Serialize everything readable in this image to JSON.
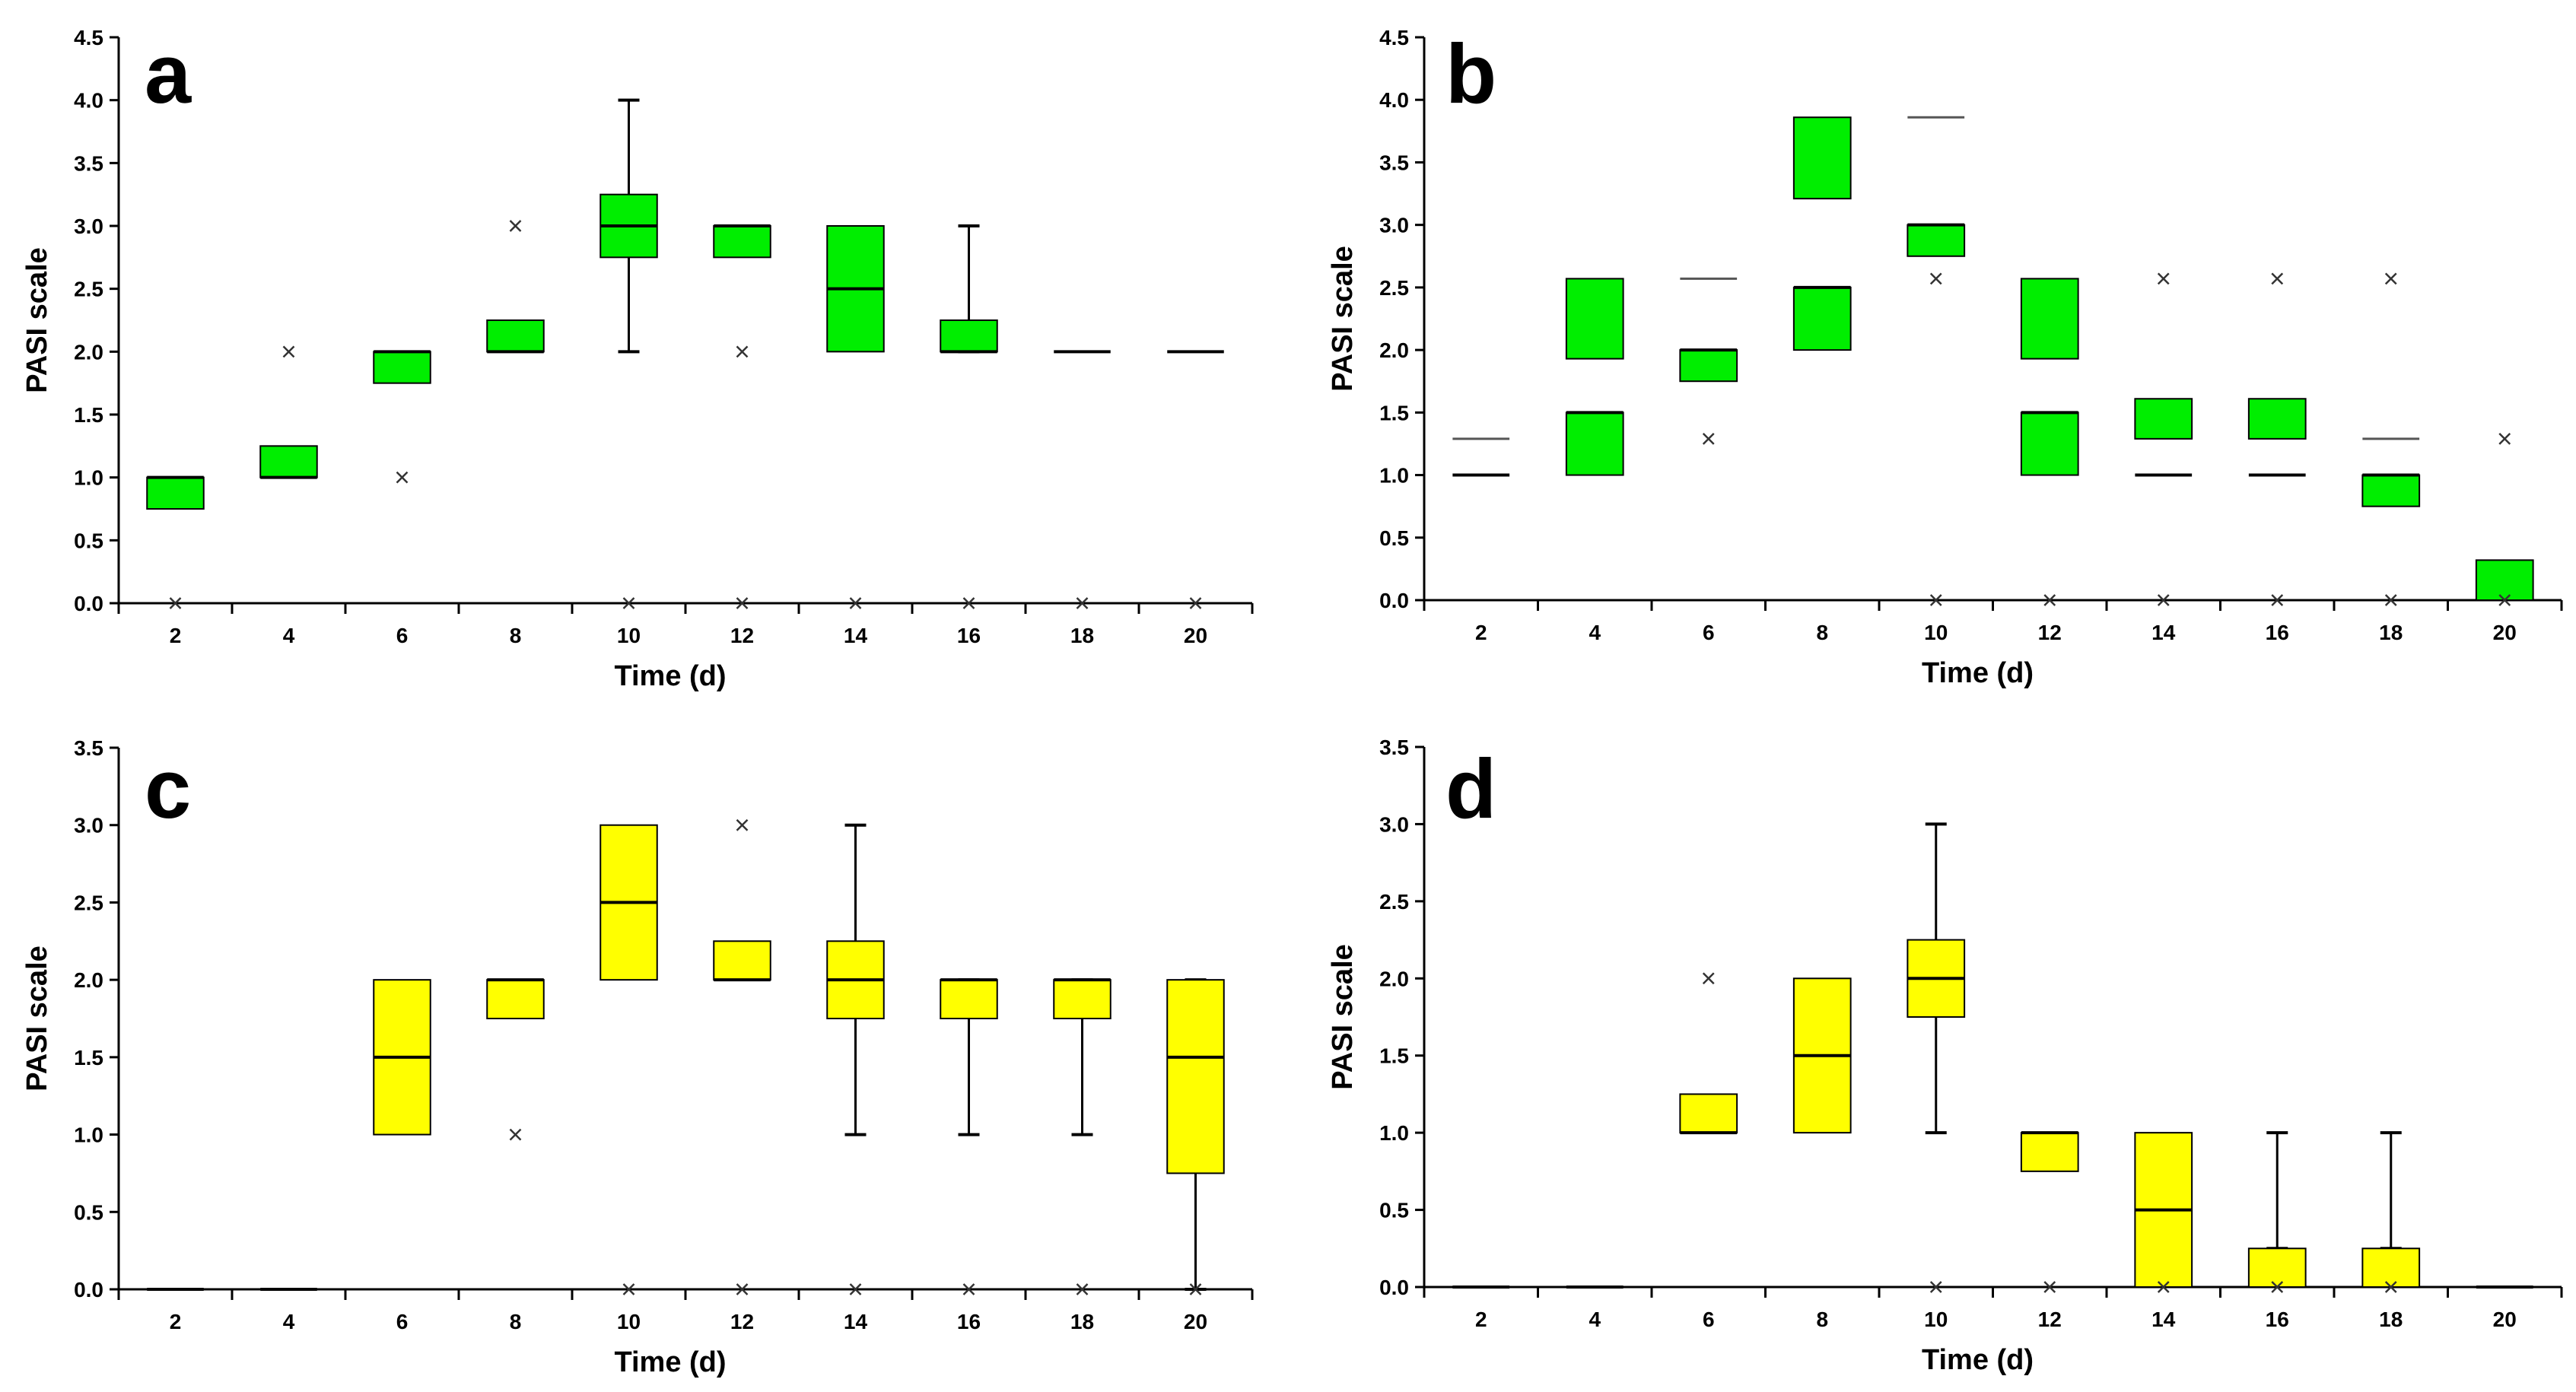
{
  "chart_data": [
    {
      "type": "box",
      "panel": "a",
      "color": "#00ee00",
      "xlabel": "Time (d)",
      "ylabel": "PASI scale",
      "ylim": [
        0,
        4.5
      ],
      "yticks": [
        "0.0",
        "0.5",
        "1.0",
        "1.5",
        "2.0",
        "2.5",
        "3.0",
        "3.5",
        "4.0",
        "4.5"
      ],
      "categories": [
        "2",
        "4",
        "6",
        "8",
        "10",
        "12",
        "14",
        "16",
        "18",
        "20"
      ],
      "series": [
        {
          "x": "2",
          "boxes": [
            {
              "q1": 0.75,
              "q3": 1.0
            }
          ],
          "medians": [
            1.0
          ],
          "outliers": [
            0.0
          ]
        },
        {
          "x": "4",
          "boxes": [
            {
              "q1": 1.0,
              "q3": 1.25
            }
          ],
          "medians": [
            1.0
          ],
          "outliers": [
            2.0
          ]
        },
        {
          "x": "6",
          "boxes": [
            {
              "q1": 1.75,
              "q3": 2.0
            }
          ],
          "medians": [
            2.0
          ],
          "outliers": [
            1.0
          ]
        },
        {
          "x": "8",
          "boxes": [
            {
              "q1": 2.0,
              "q3": 2.25
            }
          ],
          "medians": [
            2.0
          ],
          "outliers": [
            3.0
          ]
        },
        {
          "x": "10",
          "boxes": [
            {
              "q1": 2.75,
              "q3": 3.25
            }
          ],
          "medians": [
            3.0
          ],
          "whisker": [
            2.0,
            4.0
          ],
          "outliers": [
            0.0
          ]
        },
        {
          "x": "12",
          "boxes": [
            {
              "q1": 2.75,
              "q3": 3.0
            }
          ],
          "medians": [
            3.0
          ],
          "outliers": [
            2.0,
            0.0
          ]
        },
        {
          "x": "14",
          "boxes": [
            {
              "q1": 2.0,
              "q3": 3.0
            }
          ],
          "medians": [
            2.5
          ],
          "outliers": [
            0.0
          ]
        },
        {
          "x": "16",
          "boxes": [
            {
              "q1": 2.0,
              "q3": 2.25
            }
          ],
          "medians": [
            2.0
          ],
          "whisker": [
            2.0,
            3.0
          ],
          "outliers": [
            0.0
          ]
        },
        {
          "x": "18",
          "boxes": [],
          "medians": [
            2.0
          ],
          "outliers": [
            0.0
          ]
        },
        {
          "x": "20",
          "boxes": [],
          "medians": [
            2.0
          ],
          "outliers": [
            0.0
          ]
        }
      ]
    },
    {
      "type": "box",
      "panel": "b",
      "color": "#00ee00",
      "xlabel": "Time (d)",
      "ylabel": "PASI scale",
      "ylim": [
        0,
        4.5
      ],
      "yticks": [
        "0.0",
        "0.5",
        "1.0",
        "1.5",
        "2.0",
        "2.5",
        "3.0",
        "3.5",
        "4.0",
        "4.5"
      ],
      "categories": [
        "2",
        "4",
        "6",
        "8",
        "10",
        "12",
        "14",
        "16",
        "18",
        "20"
      ],
      "series": [
        {
          "x": "2",
          "boxes": [],
          "medians": [
            1.0
          ],
          "lines": [
            1.29
          ],
          "outliers": []
        },
        {
          "x": "4",
          "boxes": [
            {
              "q1": 1.0,
              "q3": 1.5
            },
            {
              "q1": 1.93,
              "q3": 2.57
            }
          ],
          "medians": [
            1.5
          ],
          "outliers": []
        },
        {
          "x": "6",
          "boxes": [
            {
              "q1": 1.75,
              "q3": 2.0
            }
          ],
          "medians": [
            2.0
          ],
          "lines": [
            2.57
          ],
          "outliers": [
            1.29
          ]
        },
        {
          "x": "8",
          "boxes": [
            {
              "q1": 2.0,
              "q3": 2.5
            },
            {
              "q1": 3.21,
              "q3": 3.86
            }
          ],
          "medians": [
            2.5
          ],
          "outliers": []
        },
        {
          "x": "10",
          "boxes": [
            {
              "q1": 2.75,
              "q3": 3.0
            }
          ],
          "medians": [
            3.0
          ],
          "lines": [
            3.86
          ],
          "outliers": [
            2.57,
            0.0
          ]
        },
        {
          "x": "12",
          "boxes": [
            {
              "q1": 1.0,
              "q3": 1.5
            },
            {
              "q1": 1.93,
              "q3": 2.57
            }
          ],
          "medians": [
            1.5
          ],
          "outliers": [
            0.0
          ]
        },
        {
          "x": "14",
          "boxes": [
            {
              "q1": 1.29,
              "q3": 1.61
            }
          ],
          "medians": [
            1.0
          ],
          "outliers": [
            2.57,
            0.0
          ]
        },
        {
          "x": "16",
          "boxes": [
            {
              "q1": 1.29,
              "q3": 1.61
            }
          ],
          "medians": [
            1.0
          ],
          "outliers": [
            2.57,
            0.0
          ]
        },
        {
          "x": "18",
          "boxes": [
            {
              "q1": 0.75,
              "q3": 1.0
            }
          ],
          "medians": [
            1.0
          ],
          "lines": [
            1.29
          ],
          "outliers": [
            2.57,
            0.0
          ]
        },
        {
          "x": "20",
          "boxes": [
            {
              "q1": 0.0,
              "q3": 0.32
            }
          ],
          "medians": [],
          "outliers": [
            1.29,
            0.0
          ]
        }
      ]
    },
    {
      "type": "box",
      "panel": "c",
      "color": "#ffff00",
      "xlabel": "Time (d)",
      "ylabel": "PASI scale",
      "ylim": [
        0,
        3.5
      ],
      "yticks": [
        "0.0",
        "0.5",
        "1.0",
        "1.5",
        "2.0",
        "2.5",
        "3.0",
        "3.5"
      ],
      "categories": [
        "2",
        "4",
        "6",
        "8",
        "10",
        "12",
        "14",
        "16",
        "18",
        "20"
      ],
      "series": [
        {
          "x": "2",
          "boxes": [],
          "medians": [
            0.0
          ],
          "outliers": []
        },
        {
          "x": "4",
          "boxes": [],
          "medians": [
            0.0
          ],
          "outliers": []
        },
        {
          "x": "6",
          "boxes": [
            {
              "q1": 1.0,
              "q3": 2.0
            }
          ],
          "medians": [
            1.5
          ],
          "outliers": []
        },
        {
          "x": "8",
          "boxes": [
            {
              "q1": 1.75,
              "q3": 2.0
            }
          ],
          "medians": [
            2.0
          ],
          "outliers": [
            1.0
          ]
        },
        {
          "x": "10",
          "boxes": [
            {
              "q1": 2.0,
              "q3": 3.0
            }
          ],
          "medians": [
            2.5
          ],
          "outliers": [
            0.0
          ]
        },
        {
          "x": "12",
          "boxes": [
            {
              "q1": 2.0,
              "q3": 2.25
            }
          ],
          "medians": [
            2.0
          ],
          "outliers": [
            3.0,
            0.0
          ]
        },
        {
          "x": "14",
          "boxes": [
            {
              "q1": 1.75,
              "q3": 2.25
            }
          ],
          "medians": [
            2.0
          ],
          "whisker": [
            1.0,
            3.0
          ],
          "outliers": [
            0.0
          ]
        },
        {
          "x": "16",
          "boxes": [
            {
              "q1": 1.75,
              "q3": 2.0
            }
          ],
          "medians": [
            2.0
          ],
          "whisker": [
            1.0,
            2.0
          ],
          "outliers": [
            0.0
          ]
        },
        {
          "x": "18",
          "boxes": [
            {
              "q1": 1.75,
              "q3": 2.0
            }
          ],
          "medians": [
            2.0
          ],
          "whisker": [
            1.0,
            2.0
          ],
          "outliers": [
            0.0
          ]
        },
        {
          "x": "20",
          "boxes": [
            {
              "q1": 0.75,
              "q3": 2.0
            }
          ],
          "medians": [
            1.5
          ],
          "whisker": [
            0.0,
            2.0
          ],
          "outliers": [
            0.0
          ]
        }
      ]
    },
    {
      "type": "box",
      "panel": "d",
      "color": "#ffff00",
      "xlabel": "Time (d)",
      "ylabel": "PASI scale",
      "ylim": [
        0,
        3.5
      ],
      "yticks": [
        "0.0",
        "0.5",
        "1.0",
        "1.5",
        "2.0",
        "2.5",
        "3.0",
        "3.5"
      ],
      "categories": [
        "2",
        "4",
        "6",
        "8",
        "10",
        "12",
        "14",
        "16",
        "18",
        "20"
      ],
      "series": [
        {
          "x": "2",
          "boxes": [],
          "medians": [
            0.0
          ],
          "outliers": []
        },
        {
          "x": "4",
          "boxes": [],
          "medians": [
            0.0
          ],
          "outliers": []
        },
        {
          "x": "6",
          "boxes": [
            {
              "q1": 1.0,
              "q3": 1.25
            }
          ],
          "medians": [
            1.0
          ],
          "outliers": [
            2.0
          ]
        },
        {
          "x": "8",
          "boxes": [
            {
              "q1": 1.0,
              "q3": 2.0
            }
          ],
          "medians": [
            1.5
          ],
          "outliers": []
        },
        {
          "x": "10",
          "boxes": [
            {
              "q1": 1.75,
              "q3": 2.25
            }
          ],
          "medians": [
            2.0
          ],
          "whisker": [
            1.0,
            3.0
          ],
          "outliers": [
            0.0
          ]
        },
        {
          "x": "12",
          "boxes": [
            {
              "q1": 0.75,
              "q3": 1.0
            }
          ],
          "medians": [
            1.0
          ],
          "outliers": [
            0.0
          ]
        },
        {
          "x": "14",
          "boxes": [
            {
              "q1": 0.0,
              "q3": 1.0
            }
          ],
          "medians": [
            0.5
          ],
          "outliers": [
            0.0
          ]
        },
        {
          "x": "16",
          "boxes": [
            {
              "q1": 0.0,
              "q3": 0.25
            }
          ],
          "medians": [],
          "whisker": [
            0.25,
            1.0
          ],
          "outliers": [
            0.0
          ]
        },
        {
          "x": "18",
          "boxes": [
            {
              "q1": 0.0,
              "q3": 0.25
            }
          ],
          "medians": [],
          "whisker": [
            0.25,
            1.0
          ],
          "outliers": [
            0.0
          ]
        },
        {
          "x": "20",
          "boxes": [],
          "medians": [
            0.0
          ],
          "outliers": []
        }
      ]
    }
  ]
}
